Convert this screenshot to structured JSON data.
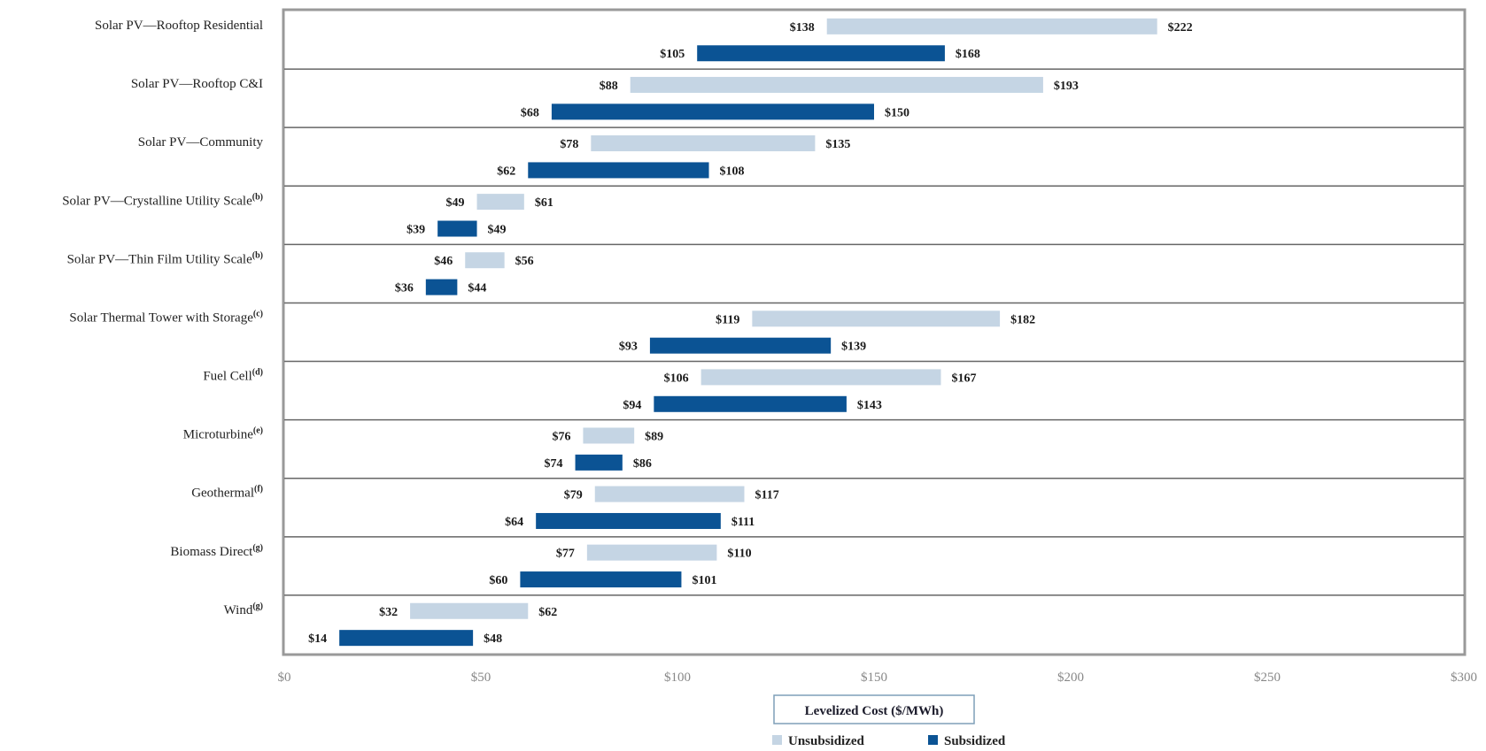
{
  "chart_data": {
    "type": "bar",
    "orientation": "horizontal",
    "subtype": "floating-range",
    "xlabel": "Levelized Cost ($/MWh)",
    "xlim": [
      0,
      300
    ],
    "x_ticks": [
      0,
      50,
      100,
      150,
      200,
      250,
      300
    ],
    "x_tick_labels": [
      "$0",
      "$50",
      "$100",
      "$150",
      "$200",
      "$250",
      "$300"
    ],
    "legend": {
      "position": "bottom-center",
      "items": [
        {
          "name": "Unsubsidized",
          "color": "#c5d5e4"
        },
        {
          "name": "Subsidized",
          "color": "#0b5394"
        }
      ]
    },
    "categories": [
      {
        "label": "Solar PV—Rooftop Residential",
        "note": "",
        "unsubsidized": [
          138,
          222
        ],
        "subsidized": [
          105,
          168
        ],
        "unsub_labels": [
          "$138",
          "$222"
        ],
        "sub_labels": [
          "$105",
          "$168"
        ]
      },
      {
        "label": "Solar PV—Rooftop C&I",
        "note": "",
        "unsubsidized": [
          88,
          193
        ],
        "subsidized": [
          68,
          150
        ],
        "unsub_labels": [
          "$88",
          "$193"
        ],
        "sub_labels": [
          "$68",
          "$150"
        ]
      },
      {
        "label": "Solar PV—Community",
        "note": "",
        "unsubsidized": [
          78,
          135
        ],
        "subsidized": [
          62,
          108
        ],
        "unsub_labels": [
          "$78",
          "$135"
        ],
        "sub_labels": [
          "$62",
          "$108"
        ]
      },
      {
        "label": "Solar PV—Crystalline Utility Scale",
        "note": "(b)",
        "unsubsidized": [
          49,
          61
        ],
        "subsidized": [
          39,
          49
        ],
        "unsub_labels": [
          "$49",
          "$61"
        ],
        "sub_labels": [
          "$39",
          "$49"
        ]
      },
      {
        "label": "Solar PV—Thin Film Utility Scale",
        "note": "(b)",
        "unsubsidized": [
          46,
          56
        ],
        "subsidized": [
          36,
          44
        ],
        "unsub_labels": [
          "$46",
          "$56"
        ],
        "sub_labels": [
          "$36",
          "$44"
        ]
      },
      {
        "label": "Solar Thermal Tower with Storage",
        "note": "(c)",
        "unsubsidized": [
          119,
          182
        ],
        "subsidized": [
          93,
          139
        ],
        "unsub_labels": [
          "$119",
          "$182"
        ],
        "sub_labels": [
          "$93",
          "$139"
        ]
      },
      {
        "label": "Fuel Cell",
        "note": "(d)",
        "unsubsidized": [
          106,
          167
        ],
        "subsidized": [
          94,
          143
        ],
        "unsub_labels": [
          "$106",
          "$167"
        ],
        "sub_labels": [
          "$94",
          "$143"
        ]
      },
      {
        "label": "Microturbine",
        "note": "(e)",
        "unsubsidized": [
          76,
          89
        ],
        "subsidized": [
          74,
          86
        ],
        "unsub_labels": [
          "$76",
          "$89"
        ],
        "sub_labels": [
          "$74",
          "$86"
        ]
      },
      {
        "label": "Geothermal",
        "note": "(f)",
        "unsubsidized": [
          79,
          117
        ],
        "subsidized": [
          64,
          111
        ],
        "unsub_labels": [
          "$79",
          "$117"
        ],
        "sub_labels": [
          "$64",
          "$111"
        ]
      },
      {
        "label": "Biomass Direct",
        "note": "(g)",
        "unsubsidized": [
          77,
          110
        ],
        "subsidized": [
          60,
          101
        ],
        "unsub_labels": [
          "$77",
          "$110"
        ],
        "sub_labels": [
          "$60",
          "$101"
        ]
      },
      {
        "label": "Wind",
        "note": "(g)",
        "unsubsidized": [
          32,
          62
        ],
        "subsidized": [
          14,
          48
        ],
        "unsub_labels": [
          "$32",
          "$62"
        ],
        "sub_labels": [
          "$14",
          "$48"
        ]
      }
    ],
    "colors": {
      "unsubsidized": "#c5d5e4",
      "subsidized": "#0b5394",
      "frame": "#999999",
      "separator": "#666666"
    }
  }
}
